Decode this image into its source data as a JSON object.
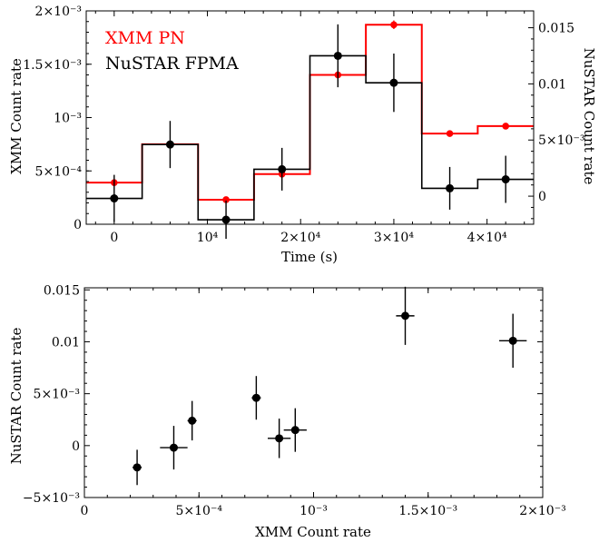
{
  "chart_data": [
    {
      "type": "line",
      "subtype": "step-histogram-with-errorbars",
      "title": "",
      "xlabel": "Time (s)",
      "ylabel": "XMM Count rate",
      "y2label": "NuSTAR Count rate",
      "xlim": [
        -3000,
        45000
      ],
      "ylim": [
        0,
        0.002
      ],
      "y2lim": [
        -0.0025,
        0.0165
      ],
      "xticks": [
        0,
        10000,
        20000,
        30000,
        40000
      ],
      "xtick_labels": [
        "0",
        "10⁴",
        "2×10⁴",
        "3×10⁴",
        "4×10⁴"
      ],
      "yticks": [
        0,
        0.0005,
        0.001,
        0.0015,
        0.002
      ],
      "ytick_labels": [
        "0",
        "5×10⁻⁴",
        "10⁻³",
        "1.5×10⁻³",
        "2×10⁻³"
      ],
      "y2ticks": [
        0,
        0.005,
        0.01,
        0.015
      ],
      "y2tick_labels": [
        "0",
        "5×10⁻³",
        "0.01",
        "0.015"
      ],
      "legend": {
        "placement": "top-left"
      },
      "series": [
        {
          "name": "XMM PN",
          "color": "#ff0000",
          "axis": "left",
          "bin_edges": [
            -3000,
            3000,
            9000,
            15000,
            21000,
            27000,
            33000,
            39000,
            45000
          ],
          "x": [
            0,
            6000,
            12000,
            18000,
            24000,
            30000,
            36000,
            42000
          ],
          "values": [
            0.00039,
            0.00075,
            0.00023,
            0.00047,
            0.0014,
            0.00187,
            0.00085,
            0.00092
          ],
          "errors": [
            2e-05,
            3e-05,
            2e-05,
            2e-05,
            4e-05,
            4e-05,
            2e-05,
            2e-05
          ]
        },
        {
          "name": "NuSTAR FPMA",
          "color": "#000000",
          "axis": "right",
          "bin_edges": [
            -3000,
            3000,
            9000,
            15000,
            21000,
            27000,
            33000,
            39000,
            45000
          ],
          "x": [
            0,
            6000,
            12000,
            18000,
            24000,
            30000,
            36000,
            42000
          ],
          "values": [
            -0.0002,
            0.0046,
            -0.0021,
            0.0024,
            0.0125,
            0.0101,
            0.0007,
            0.0015
          ],
          "errors": [
            0.0021,
            0.0021,
            0.0017,
            0.0019,
            0.0028,
            0.0026,
            0.0019,
            0.0021
          ]
        }
      ]
    },
    {
      "type": "scatter",
      "title": "",
      "xlabel": "XMM Count rate",
      "ylabel": "NuSTAR Count rate",
      "xlim": [
        0,
        0.002
      ],
      "ylim": [
        -0.005,
        0.0152
      ],
      "xticks": [
        0,
        0.0005,
        0.001,
        0.0015,
        0.002
      ],
      "xtick_labels": [
        "0",
        "5×10⁻⁴",
        "10⁻³",
        "1.5×10⁻³",
        "2×10⁻³"
      ],
      "yticks": [
        -0.005,
        0,
        0.005,
        0.01,
        0.015
      ],
      "ytick_labels": [
        "−5×10⁻³",
        "0",
        "5×10⁻³",
        "0.01",
        "0.015"
      ],
      "series": [
        {
          "color": "#000000",
          "x": [
            0.00023,
            0.00039,
            0.00047,
            0.00075,
            0.00085,
            0.00092,
            0.0014,
            0.00187
          ],
          "y": [
            -0.0021,
            -0.0002,
            0.0024,
            0.0046,
            0.0007,
            0.0015,
            0.0125,
            0.0101
          ],
          "xerr": [
            2e-05,
            6e-05,
            2e-05,
            2e-05,
            5e-05,
            5e-05,
            4e-05,
            6e-05
          ],
          "yerr": [
            0.0017,
            0.0021,
            0.0019,
            0.0021,
            0.0019,
            0.0021,
            0.0028,
            0.0026
          ]
        }
      ]
    }
  ]
}
